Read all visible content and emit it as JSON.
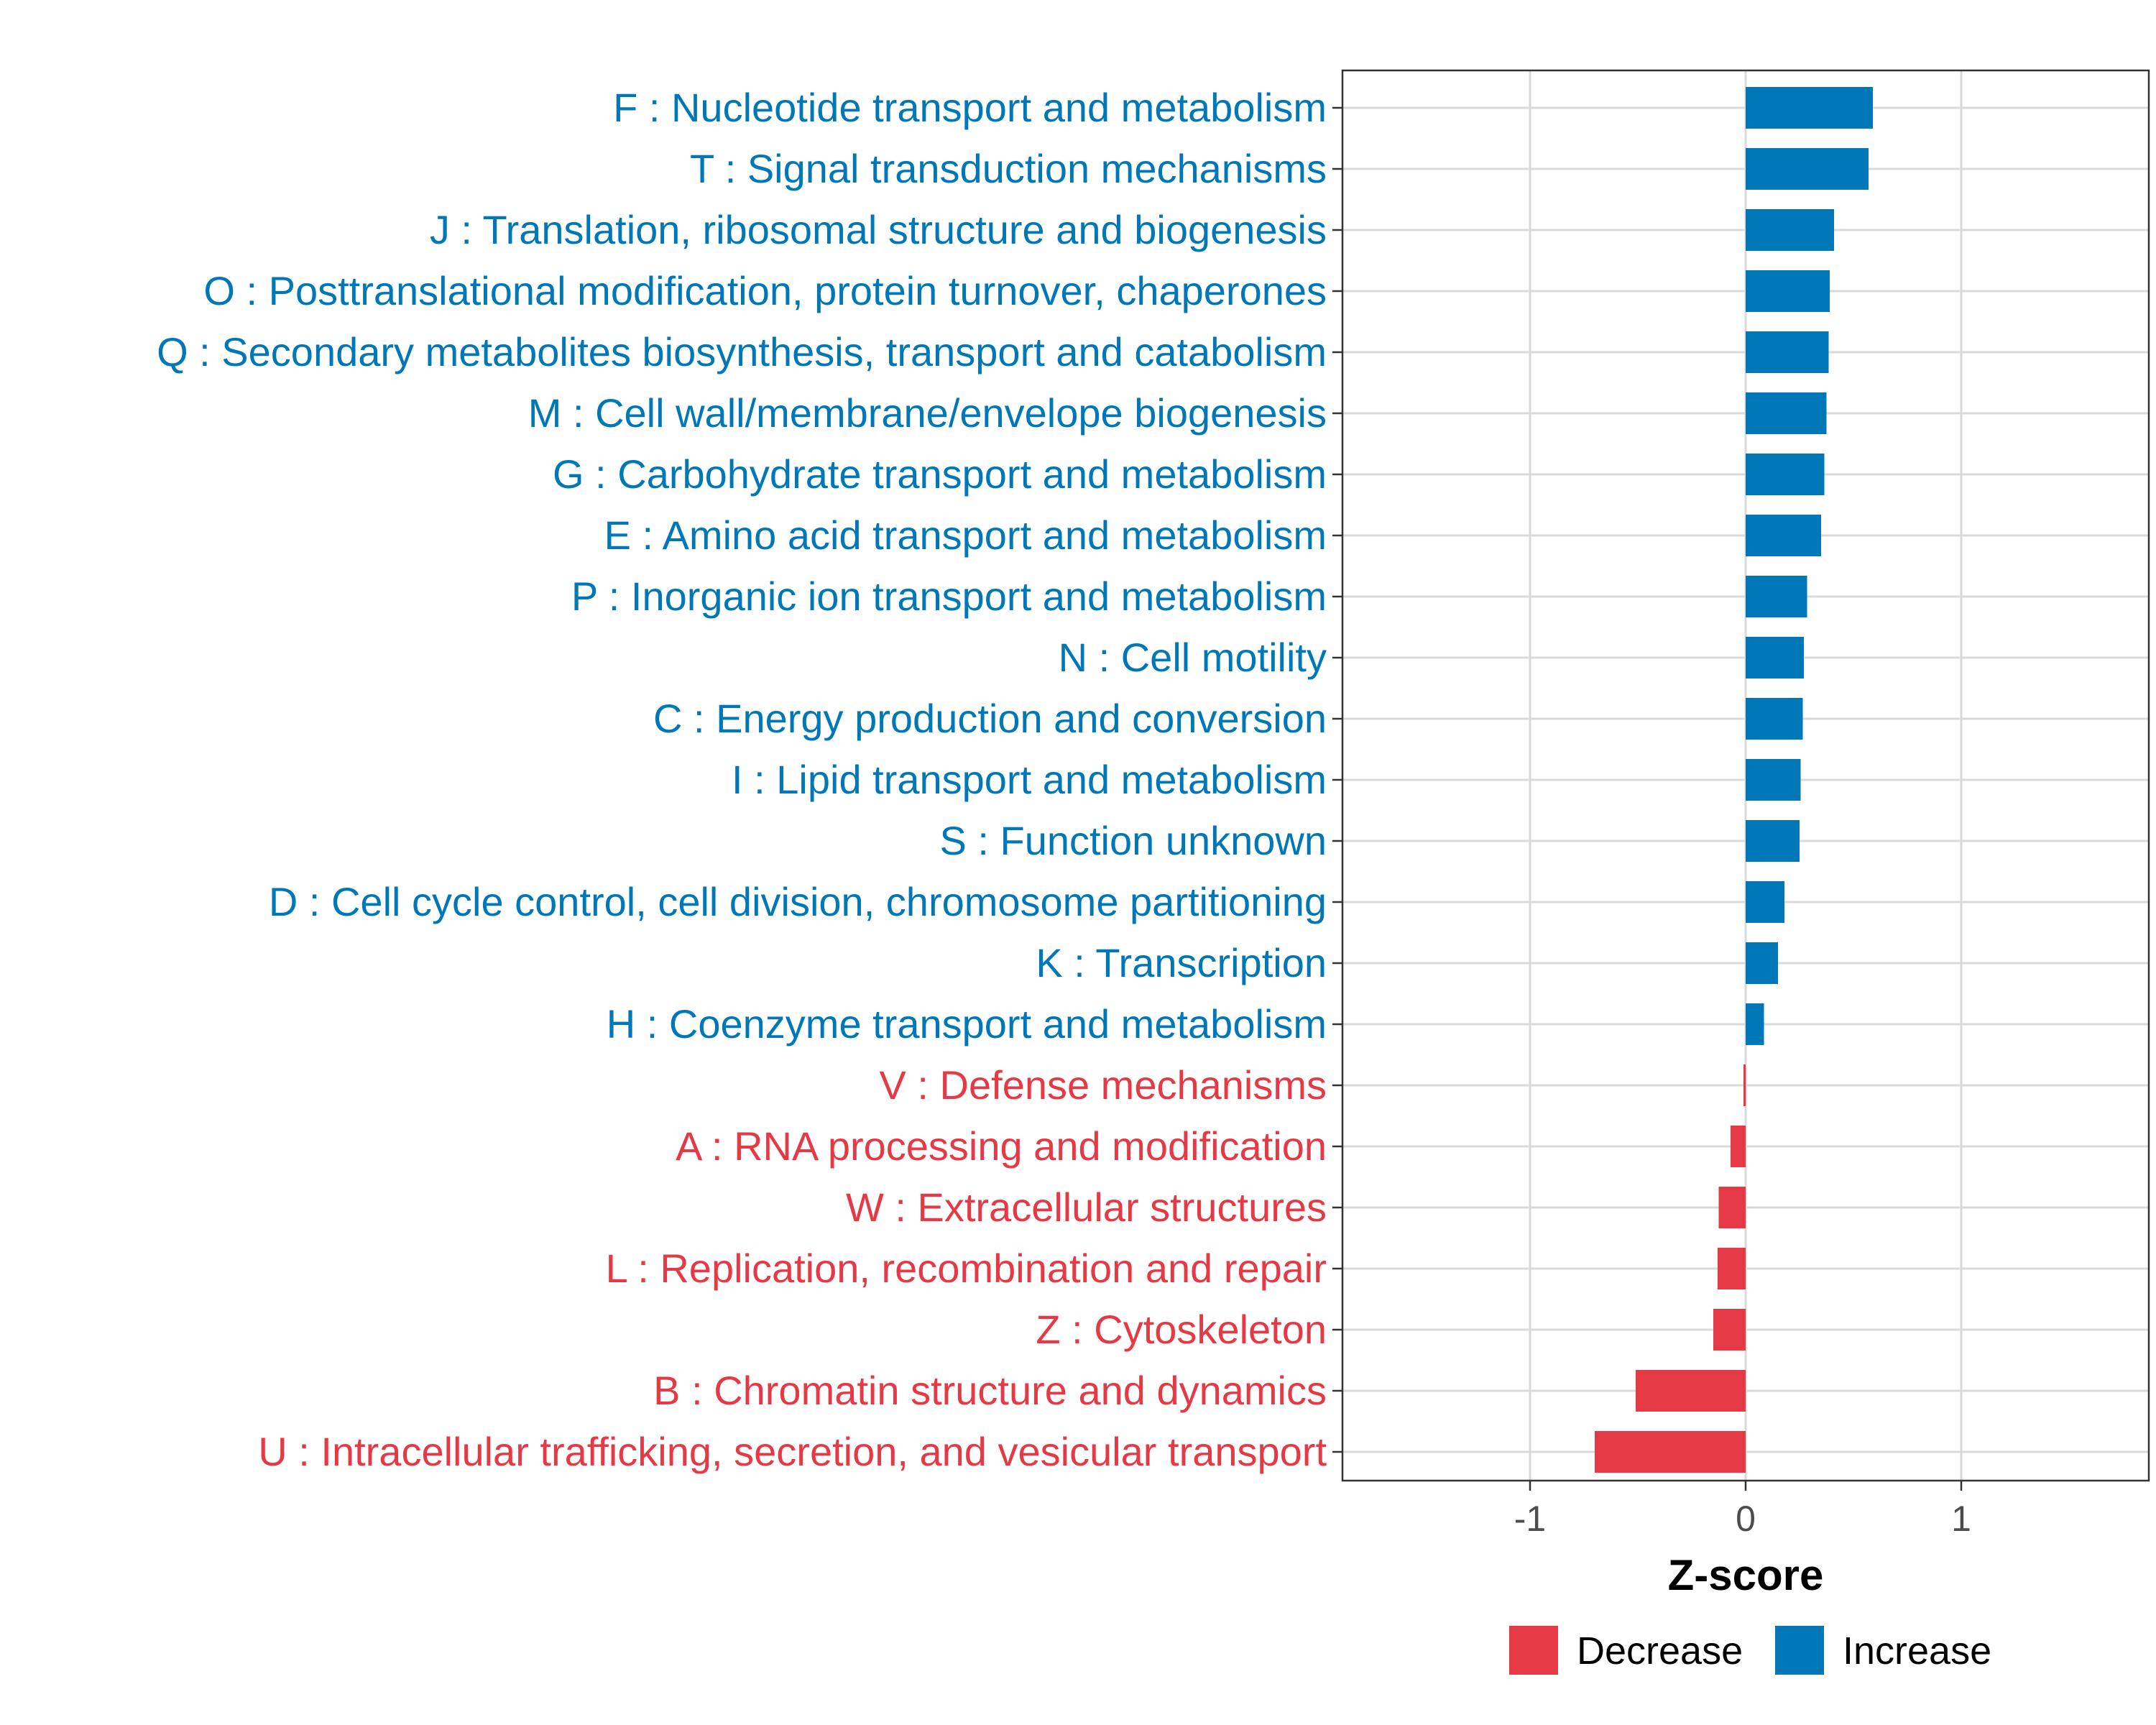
{
  "chart_data": {
    "type": "bar",
    "orientation": "horizontal",
    "xlabel": "Z-score",
    "ylabel": "",
    "xlim": [
      -1.87,
      1.87
    ],
    "xticks": [
      -1,
      0,
      1
    ],
    "xtick_labels": [
      "-1",
      "0",
      "1"
    ],
    "grid": true,
    "legend_position": "bottom",
    "legend": [
      {
        "name": "Decrease",
        "color": "#e63946"
      },
      {
        "name": "Increase",
        "color": "#0077b6"
      }
    ],
    "colors": {
      "Increase": "#0077b6",
      "Decrease": "#e63946"
    },
    "categories": [
      "F : Nucleotide transport and metabolism",
      "T : Signal transduction mechanisms",
      "J : Translation, ribosomal structure and biogenesis",
      "O : Posttranslational modification, protein turnover, chaperones",
      "Q : Secondary metabolites biosynthesis, transport and catabolism",
      "M : Cell wall/membrane/envelope biogenesis",
      "G : Carbohydrate transport and metabolism",
      "E : Amino acid transport and metabolism",
      "P : Inorganic ion transport and metabolism",
      "N : Cell motility",
      "C : Energy production and conversion",
      "I : Lipid transport and metabolism",
      "S : Function unknown",
      "D : Cell cycle control, cell division, chromosome partitioning",
      "K : Transcription",
      "H : Coenzyme transport and metabolism",
      "V : Defense mechanisms",
      "A : RNA processing and modification",
      "W : Extracellular structures",
      "L : Replication, recombination and repair",
      "Z : Cytoskeleton",
      "B : Chromatin structure and dynamics",
      "U : Intracellular trafficking, secretion, and vesicular transport"
    ],
    "values": [
      0.59,
      0.57,
      0.41,
      0.39,
      0.385,
      0.375,
      0.365,
      0.35,
      0.285,
      0.27,
      0.265,
      0.255,
      0.25,
      0.18,
      0.15,
      0.085,
      -0.01,
      -0.07,
      -0.125,
      -0.13,
      -0.15,
      -0.51,
      -0.7
    ],
    "groups": [
      "Increase",
      "Increase",
      "Increase",
      "Increase",
      "Increase",
      "Increase",
      "Increase",
      "Increase",
      "Increase",
      "Increase",
      "Increase",
      "Increase",
      "Increase",
      "Increase",
      "Increase",
      "Increase",
      "Decrease",
      "Decrease",
      "Decrease",
      "Decrease",
      "Decrease",
      "Decrease",
      "Decrease"
    ]
  }
}
